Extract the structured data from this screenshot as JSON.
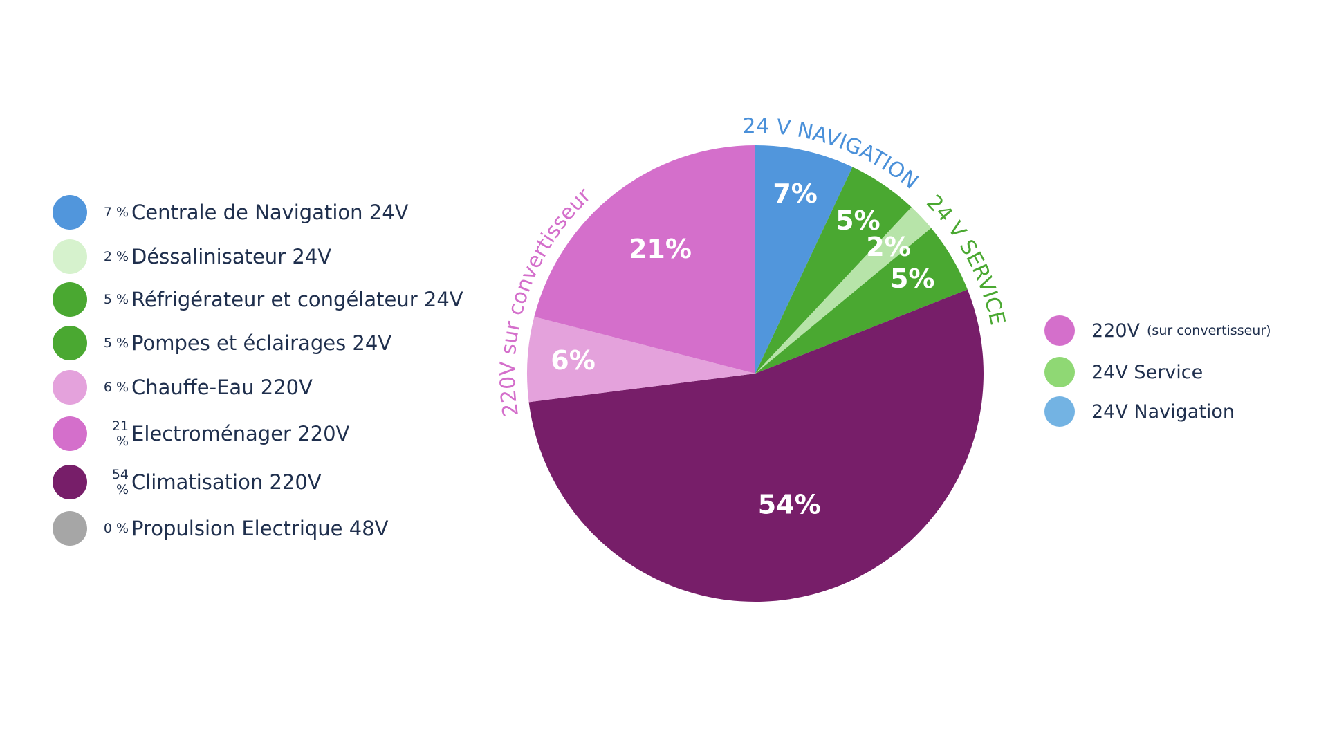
{
  "chart_data": {
    "type": "pie",
    "slices": [
      {
        "label": "Centrale de Navigation 24V",
        "value": 7,
        "value_label": "7%",
        "legend_pct": "7 %",
        "color": "#5196dc"
      },
      {
        "label": "Réfrigérateur et congélateur 24V",
        "value": 5,
        "value_label": "5%",
        "legend_pct": "5 %",
        "color": "#4aa831"
      },
      {
        "label": "Déssalinisateur 24V",
        "value": 2,
        "value_label": "2%",
        "legend_pct": "2 %",
        "color": "#b7e4a9"
      },
      {
        "label": "Pompes et éclairages 24V",
        "value": 5,
        "value_label": "5%",
        "legend_pct": "5 %",
        "color": "#4aa831"
      },
      {
        "label": "Climatisation 220V",
        "value": 54,
        "value_label": "54%",
        "legend_pct": "54 %",
        "color": "#771e69"
      },
      {
        "label": "Chauffe-Eau 220V",
        "value": 6,
        "value_label": "6%",
        "legend_pct": "6 %",
        "color": "#e4a2dc"
      },
      {
        "label": "Electroménager 220V",
        "value": 21,
        "value_label": "21%",
        "legend_pct": "21 %",
        "color": "#d46fcb"
      },
      {
        "label": "Propulsion Electrique 48V",
        "value": 0,
        "value_label": "",
        "legend_pct": "0 %",
        "color": "#a6a6a6"
      }
    ],
    "legend_order": [
      {
        "slice": 0,
        "dot_color": "#5196dc"
      },
      {
        "slice": 2,
        "dot_color": "#d6f2cd"
      },
      {
        "slice": 1,
        "dot_color": "#4aa831"
      },
      {
        "slice": 3,
        "dot_color": "#4aa831"
      },
      {
        "slice": 5,
        "dot_color": "#e4a2dc"
      },
      {
        "slice": 6,
        "dot_color": "#d46fcb"
      },
      {
        "slice": 4,
        "dot_color": "#771e69"
      },
      {
        "slice": 7,
        "dot_color": "#a6a6a6"
      }
    ],
    "groups": [
      {
        "label": "220V",
        "note": "(sur convertisseur)",
        "color": "#d46fcb"
      },
      {
        "label": "24V Service",
        "note": "",
        "color": "#8fd874"
      },
      {
        "label": "24V Navigation",
        "note": "",
        "color": "#73b3e3"
      }
    ],
    "arc_labels": [
      {
        "text": "24 V NAVIGATION",
        "color": "#4a90d9"
      },
      {
        "text": "24 V SERVICE",
        "color": "#4aa831"
      },
      {
        "text": "220V sur convertisseur",
        "color": "#d46fcb"
      }
    ]
  }
}
